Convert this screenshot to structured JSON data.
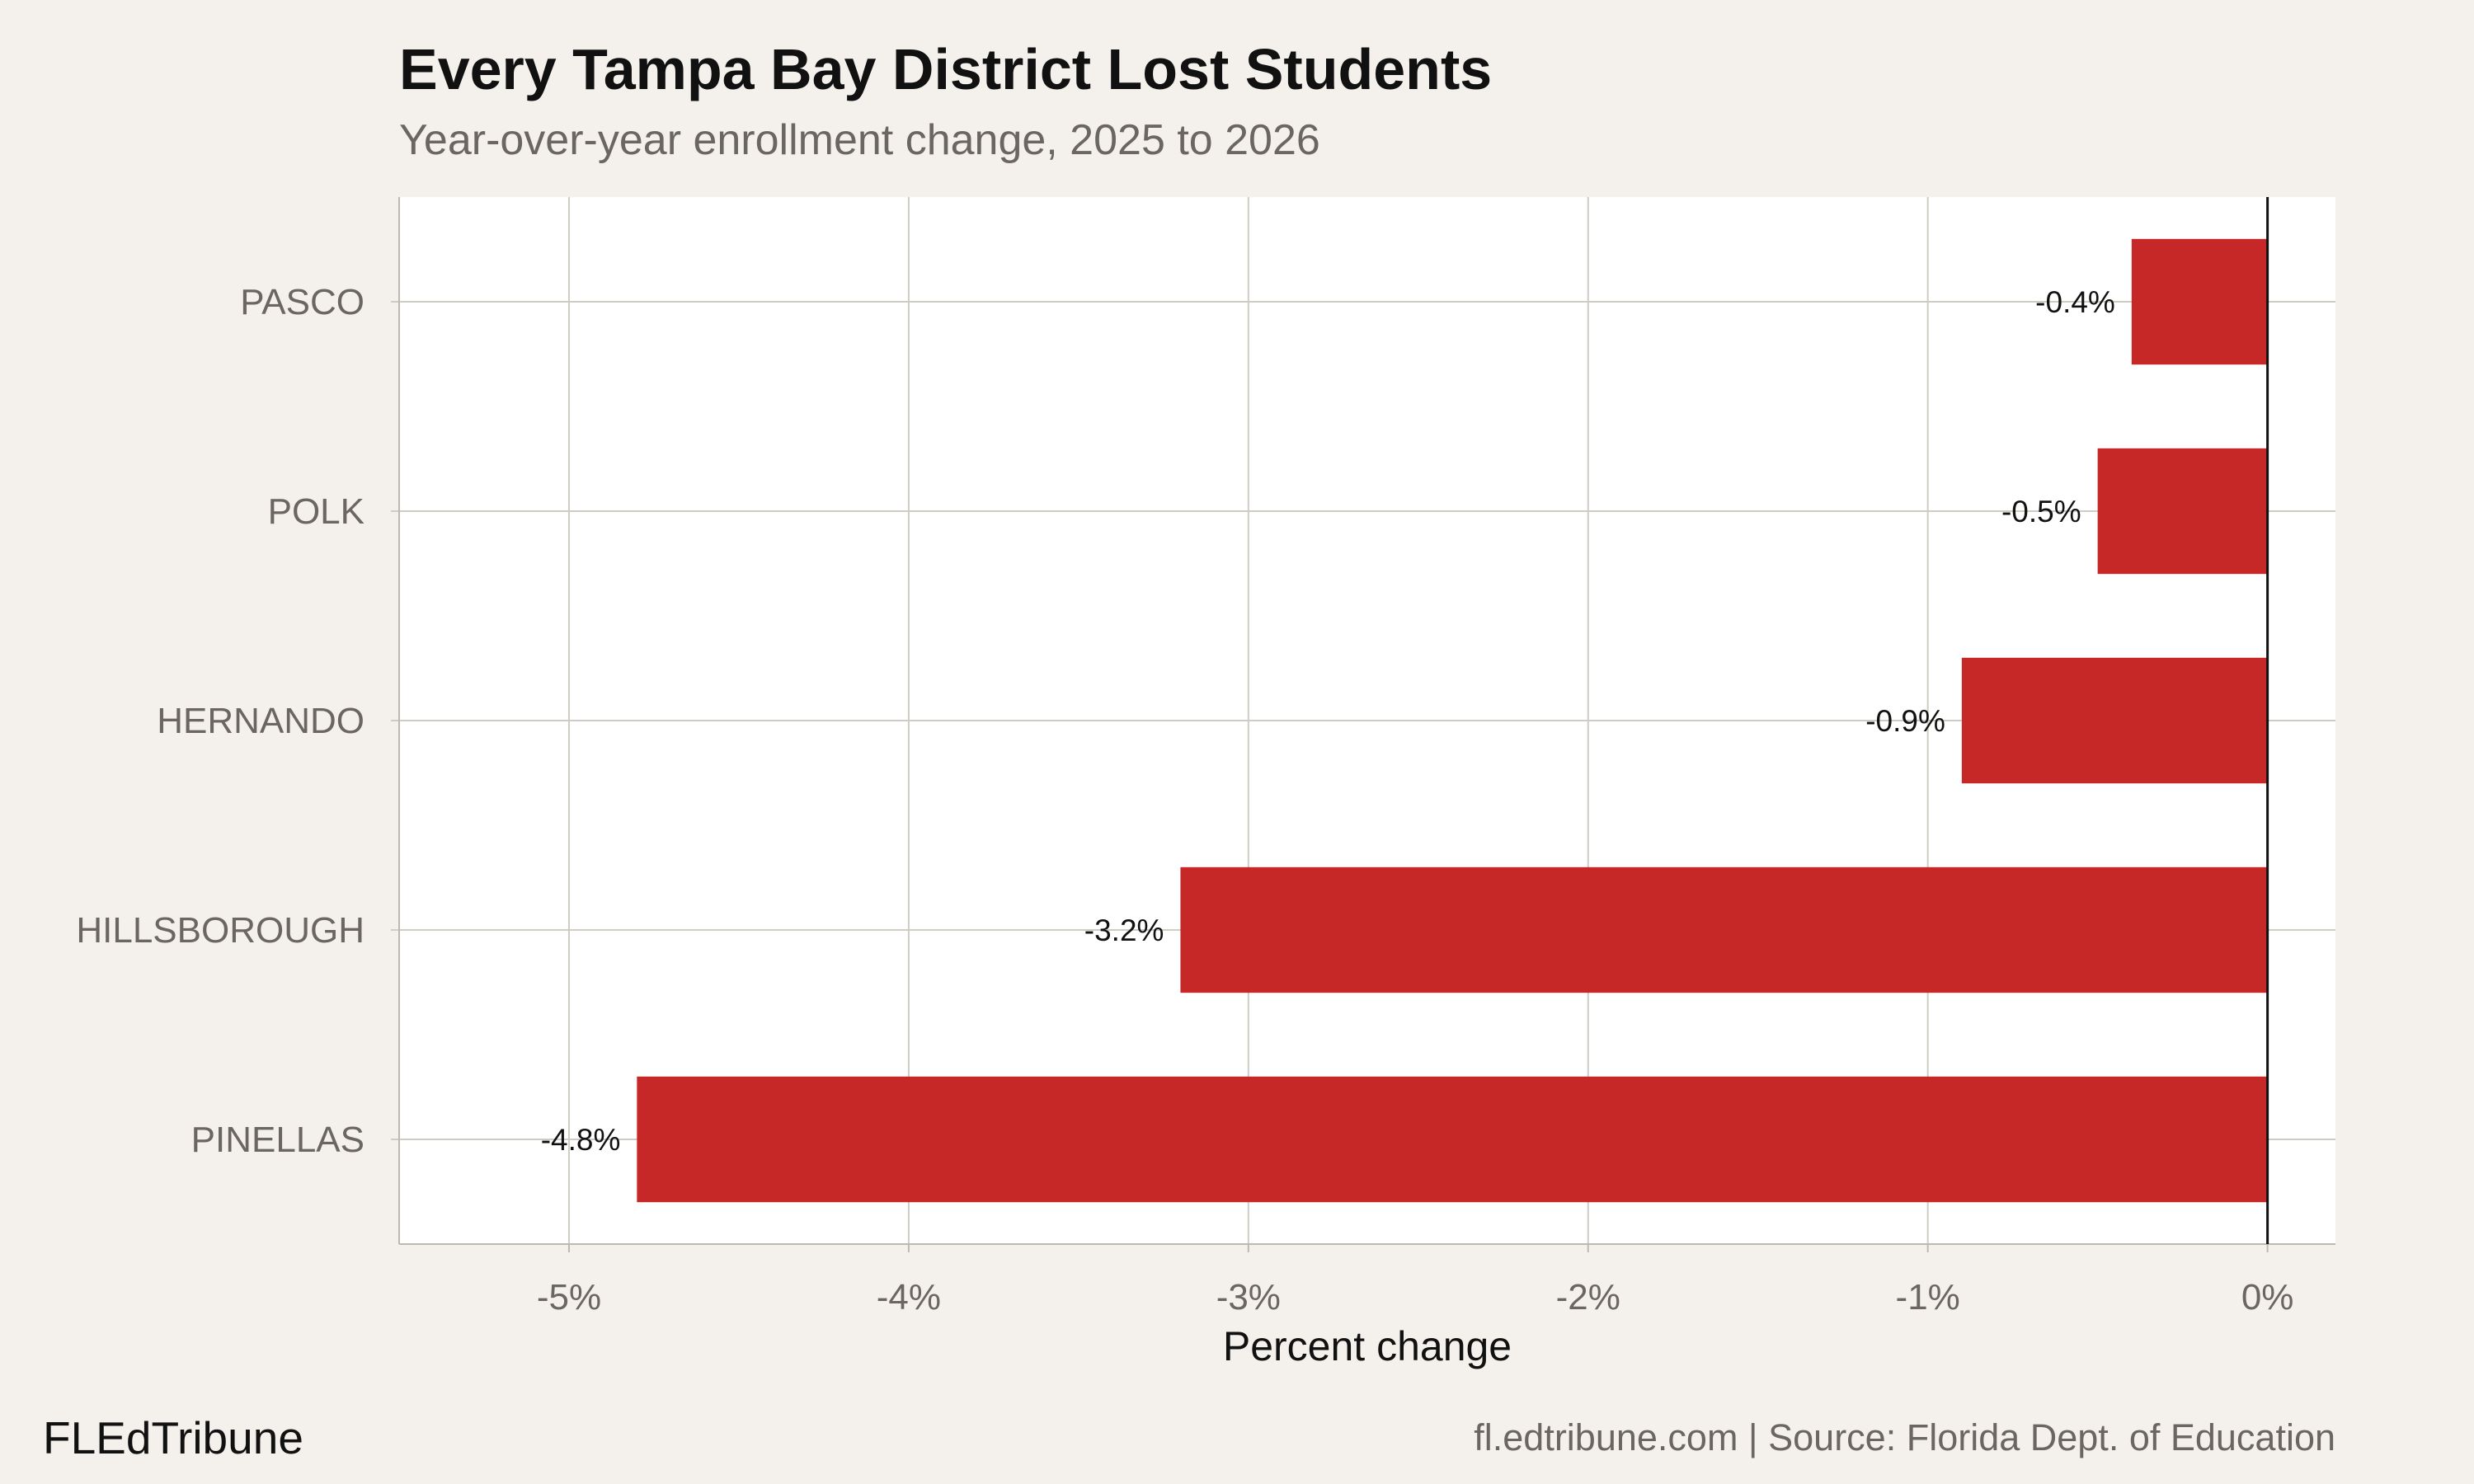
{
  "chart_data": {
    "type": "bar",
    "orientation": "horizontal",
    "title": "Every Tampa Bay District Lost Students",
    "subtitle": "Year-over-year enrollment change, 2025 to 2026",
    "xlabel": "Percent change",
    "ylabel": "",
    "categories": [
      "PASCO",
      "POLK",
      "HERNANDO",
      "HILLSBOROUGH",
      "PINELLAS"
    ],
    "values": [
      -0.4,
      -0.5,
      -0.9,
      -3.2,
      -4.8
    ],
    "data_labels": [
      "-0.4%",
      "-0.5%",
      "-0.9%",
      "-3.2%",
      "-4.8%"
    ],
    "xlim": [
      -5.5,
      0.2
    ],
    "xticks": [
      -5,
      -4,
      -3,
      -2,
      -1,
      0
    ],
    "xtick_labels": [
      "-5%",
      "-4%",
      "-3%",
      "-2%",
      "-1%",
      "0%"
    ],
    "grid": true,
    "bar_color": "#c62828",
    "background_color": "#f4f1ec",
    "panel_color": "#ffffff"
  },
  "footer": {
    "brand": "FLEdTribune",
    "source": "fl.edtribune.com | Source: Florida Dept. of Education"
  }
}
